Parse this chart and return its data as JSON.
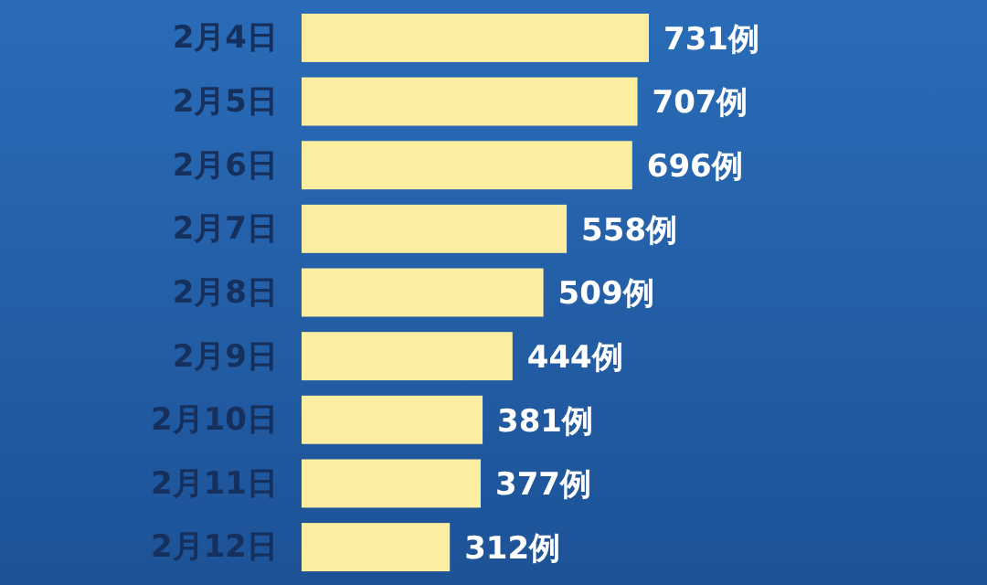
{
  "chart_data": {
    "type": "bar",
    "orientation": "horizontal",
    "categories": [
      "2月4日",
      "2月5日",
      "2月6日",
      "2月7日",
      "2月8日",
      "2月9日",
      "2月10日",
      "2月11日",
      "2月12日"
    ],
    "values": [
      731,
      707,
      696,
      558,
      509,
      444,
      381,
      377,
      312
    ],
    "value_labels": [
      "731例",
      "707例",
      "696例",
      "558例",
      "509例",
      "444例",
      "381例",
      "377例",
      "312例"
    ],
    "color": "#fbeea0",
    "tick_labels": "y"
  }
}
